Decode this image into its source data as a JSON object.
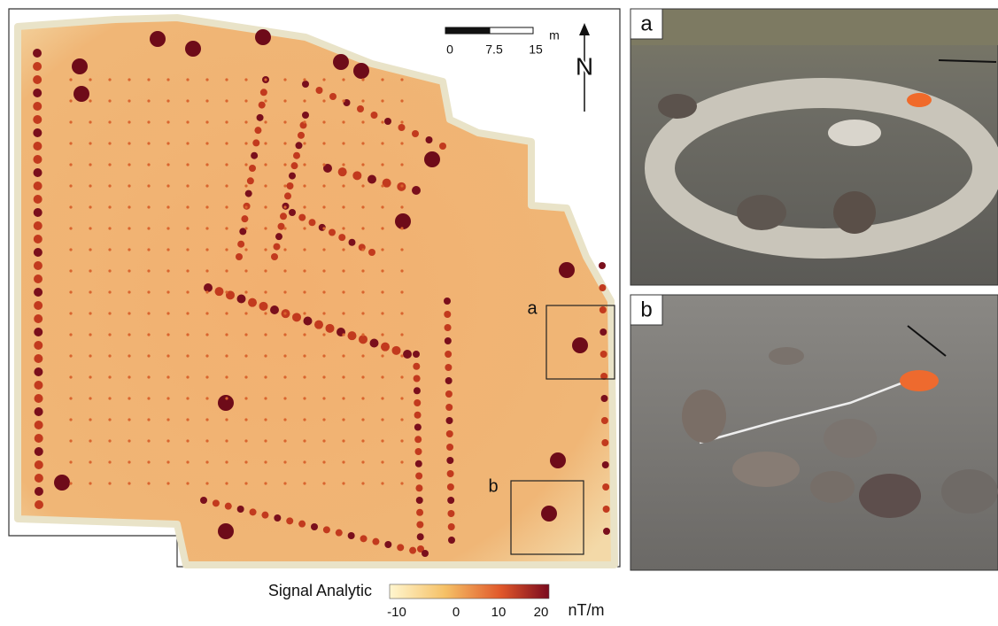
{
  "map": {
    "scale_bar": {
      "ticks": [
        0,
        7.5,
        15
      ],
      "unit": "m"
    },
    "north": "N",
    "insets": [
      "a",
      "b"
    ]
  },
  "legend": {
    "title": "Signal Analytic",
    "ticks": [
      -10,
      0,
      10,
      20
    ],
    "unit": "nT/m"
  },
  "photos": [
    {
      "label": "a"
    },
    {
      "label": "b"
    }
  ]
}
